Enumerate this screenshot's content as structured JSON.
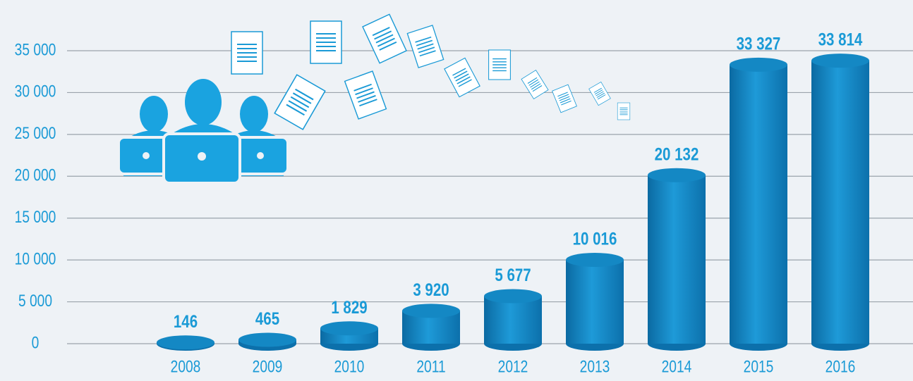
{
  "chart_data": {
    "type": "bar",
    "categories": [
      "2008",
      "2009",
      "2010",
      "2011",
      "2012",
      "2013",
      "2014",
      "2015",
      "2016"
    ],
    "values": [
      146,
      465,
      1829,
      3920,
      5677,
      10016,
      20132,
      33327,
      33814
    ],
    "value_labels": [
      "146",
      "465",
      "1 829",
      "3 920",
      "5 677",
      "10 016",
      "20 132",
      "33 327",
      "33 814"
    ],
    "color": "#1488c4",
    "ylim": [
      0,
      35000
    ],
    "yticks": [
      0,
      {
        "value": 5000,
        "label": "5 000"
      },
      {
        "value": 10000,
        "label": "10 000"
      },
      {
        "value": 15000,
        "label": "15 000"
      },
      {
        "value": 20000,
        "label": "20 000"
      },
      {
        "value": 25000,
        "label": "25 000"
      },
      {
        "value": 30000,
        "label": "30 000"
      },
      {
        "value": 35000,
        "label": "35 000"
      }
    ],
    "grid": true
  }
}
